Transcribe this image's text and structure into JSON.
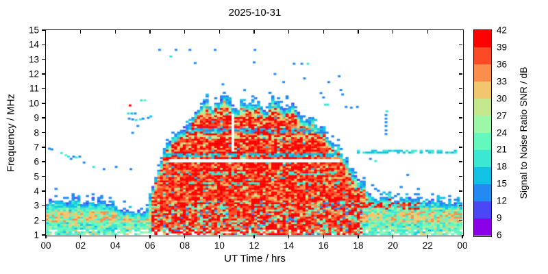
{
  "chart_data": {
    "type": "heatmap",
    "title": "2025-10-31",
    "xlabel": "UT Time / hrs",
    "ylabel": "Frequency / MHz",
    "x_range_hours": [
      0,
      24
    ],
    "y_range_mhz": [
      1,
      15
    ],
    "x_tick_labels": [
      "00",
      "02",
      "04",
      "06",
      "08",
      "10",
      "12",
      "14",
      "16",
      "18",
      "20",
      "22",
      "00"
    ],
    "y_tick_labels": [
      "1",
      "2",
      "3",
      "4",
      "5",
      "6",
      "7",
      "8",
      "9",
      "10",
      "11",
      "12",
      "13",
      "14",
      "15"
    ],
    "grid": "off",
    "colorbar": {
      "label": "Signal to Noise Ratio SNR / dB",
      "min_db": 6,
      "max_db": 42,
      "step_db": 3,
      "tick_labels": [
        "6",
        "9",
        "12",
        "15",
        "18",
        "21",
        "24",
        "27",
        "30",
        "33",
        "36",
        "39",
        "42"
      ],
      "colors": [
        "#8a00e8",
        "#4a48f4",
        "#2489f2",
        "#12c2e4",
        "#3be8d2",
        "#64f7be",
        "#9df7a8",
        "#c4e68c",
        "#f2c66d",
        "#fc8d4c",
        "#fc4a26",
        "#fd0000"
      ]
    },
    "envelope_top_mhz": [
      [
        0,
        3.1
      ],
      [
        0.5,
        3.2
      ],
      [
        1,
        3.3
      ],
      [
        1.5,
        3.35
      ],
      [
        2,
        3.35
      ],
      [
        2.5,
        3.3
      ],
      [
        3,
        3.25
      ],
      [
        3.5,
        3.15
      ],
      [
        4,
        3.0
      ],
      [
        4.4,
        2.85
      ],
      [
        4.8,
        2.62
      ],
      [
        5.2,
        2.55
      ],
      [
        5.6,
        2.62
      ],
      [
        5.85,
        2.95
      ],
      [
        6.05,
        3.9
      ],
      [
        6.25,
        4.9
      ],
      [
        6.45,
        5.4
      ],
      [
        6.7,
        6.1
      ],
      [
        6.95,
        7.2
      ],
      [
        7.2,
        7.5
      ],
      [
        7.45,
        7.9
      ],
      [
        7.7,
        7.8
      ],
      [
        7.95,
        8.1
      ],
      [
        8.2,
        8.6
      ],
      [
        8.45,
        9.1
      ],
      [
        8.7,
        9.4
      ],
      [
        8.95,
        10.0
      ],
      [
        9.25,
        10.2
      ],
      [
        9.55,
        9.7
      ],
      [
        9.8,
        9.55
      ],
      [
        10.05,
        10.1
      ],
      [
        10.35,
        10.6
      ],
      [
        10.65,
        9.9
      ],
      [
        10.9,
        9.35
      ],
      [
        11.15,
        9.9
      ],
      [
        11.4,
        10.1
      ],
      [
        11.65,
        9.8
      ],
      [
        11.9,
        10.0
      ],
      [
        12.15,
        10.05
      ],
      [
        12.45,
        9.7
      ],
      [
        12.7,
        9.3
      ],
      [
        12.9,
        9.8
      ],
      [
        13.05,
        10.3
      ],
      [
        13.3,
        10.15
      ],
      [
        13.6,
        9.6
      ],
      [
        13.9,
        9.8
      ],
      [
        14.2,
        9.9
      ],
      [
        14.5,
        9.3
      ],
      [
        14.75,
        9.0
      ],
      [
        15.0,
        8.95
      ],
      [
        15.3,
        8.9
      ],
      [
        15.6,
        8.35
      ],
      [
        15.9,
        8.3
      ],
      [
        16.1,
        7.95
      ],
      [
        16.4,
        7.5
      ],
      [
        16.7,
        7.0
      ],
      [
        17.0,
        6.6
      ],
      [
        17.3,
        6.05
      ],
      [
        17.6,
        5.5
      ],
      [
        17.9,
        4.95
      ],
      [
        18.2,
        4.4
      ],
      [
        18.5,
        4.0
      ],
      [
        18.8,
        3.65
      ],
      [
        19.1,
        3.55
      ],
      [
        19.5,
        3.5
      ],
      [
        20,
        3.45
      ],
      [
        20.5,
        3.5
      ],
      [
        21,
        3.4
      ],
      [
        21.5,
        3.4
      ],
      [
        22,
        3.35
      ],
      [
        22.5,
        3.3
      ],
      [
        23,
        3.25
      ],
      [
        23.5,
        3.2
      ],
      [
        24,
        3.3
      ]
    ],
    "features": {
      "white_gap_row": {
        "f": [
          6.0,
          6.22
        ],
        "t": [
          7.0,
          17.0
        ]
      },
      "blue_row_mid": {
        "f": [
          6.35,
          6.58
        ],
        "t": [
          6.5,
          17.5
        ]
      },
      "blue_row_8mhz": {
        "f": [
          7.95,
          8.25
        ],
        "t": [
          6.8,
          17.2
        ]
      },
      "dotted_row_evening": {
        "f": [
          6.58,
          6.78
        ],
        "t": [
          17.8,
          23.8
        ]
      },
      "red_streaks_evening": {
        "f": [
          2.7,
          3.25
        ],
        "t": [
          18.0,
          21.6
        ]
      },
      "white_column": {
        "f": [
          6.65,
          9.3
        ],
        "t": [
          10.68,
          10.84
        ]
      }
    },
    "points_hour_mhz_snr": [
      [
        6.55,
        13.65,
        13
      ],
      [
        7.5,
        13.65,
        13
      ],
      [
        8.3,
        13.65,
        13
      ],
      [
        9.75,
        13.65,
        13
      ],
      [
        12.05,
        13.65,
        13
      ],
      [
        7.2,
        13.2,
        20
      ],
      [
        8.6,
        12.75,
        13
      ],
      [
        12.0,
        12.8,
        13
      ],
      [
        14.3,
        12.7,
        13
      ],
      [
        14.75,
        12.7,
        13
      ],
      [
        15.1,
        12.7,
        19
      ],
      [
        13.2,
        12.0,
        13
      ],
      [
        13.7,
        11.45,
        13
      ],
      [
        14.9,
        11.7,
        13
      ],
      [
        16.3,
        11.45,
        13
      ],
      [
        16.9,
        11.85,
        13
      ],
      [
        10.2,
        11.3,
        13
      ],
      [
        11.45,
        10.9,
        13
      ],
      [
        15.85,
        10.7,
        13
      ],
      [
        16.0,
        10.4,
        13
      ],
      [
        17.0,
        10.9,
        13
      ],
      [
        17.1,
        10.6,
        13
      ],
      [
        16.1,
        9.9,
        19
      ],
      [
        16.25,
        9.9,
        19
      ],
      [
        17.3,
        9.75,
        13
      ],
      [
        17.6,
        9.7,
        13
      ],
      [
        17.95,
        9.75,
        13
      ],
      [
        4.85,
        9.85,
        41
      ],
      [
        5.5,
        10.2,
        19
      ],
      [
        5.7,
        10.2,
        22
      ],
      [
        4.75,
        9.3,
        19
      ],
      [
        4.95,
        9.3,
        17
      ],
      [
        5.15,
        9.3,
        13
      ],
      [
        4.8,
        8.95,
        13
      ],
      [
        5.0,
        8.9,
        13
      ],
      [
        5.2,
        8.85,
        19
      ],
      [
        5.45,
        8.9,
        19
      ],
      [
        5.6,
        8.95,
        13
      ],
      [
        5.9,
        9.0,
        13
      ],
      [
        6.05,
        9.1,
        17
      ],
      [
        5.3,
        8.45,
        13
      ],
      [
        5.0,
        7.98,
        13
      ],
      [
        0.2,
        6.9,
        13
      ],
      [
        0.35,
        6.85,
        13
      ],
      [
        0.9,
        6.6,
        19
      ],
      [
        1.15,
        6.45,
        22
      ],
      [
        1.3,
        6.35,
        19
      ],
      [
        1.45,
        6.2,
        13
      ],
      [
        1.6,
        6.35,
        13
      ],
      [
        1.75,
        6.3,
        19
      ],
      [
        1.95,
        6.35,
        13
      ],
      [
        2.2,
        5.95,
        13
      ],
      [
        2.75,
        5.65,
        19
      ],
      [
        3.35,
        5.5,
        13
      ],
      [
        4.05,
        5.65,
        13
      ],
      [
        4.9,
        5.5,
        13
      ],
      [
        19.6,
        7.9,
        13
      ],
      [
        19.6,
        8.15,
        13
      ],
      [
        19.6,
        8.45,
        13
      ],
      [
        19.6,
        8.7,
        13
      ],
      [
        19.6,
        8.95,
        13
      ],
      [
        19.6,
        9.2,
        13
      ],
      [
        19.65,
        9.45,
        19
      ],
      [
        18.7,
        6.2,
        13
      ],
      [
        19.0,
        6.05,
        19
      ],
      [
        20.85,
        5.1,
        13
      ]
    ]
  }
}
